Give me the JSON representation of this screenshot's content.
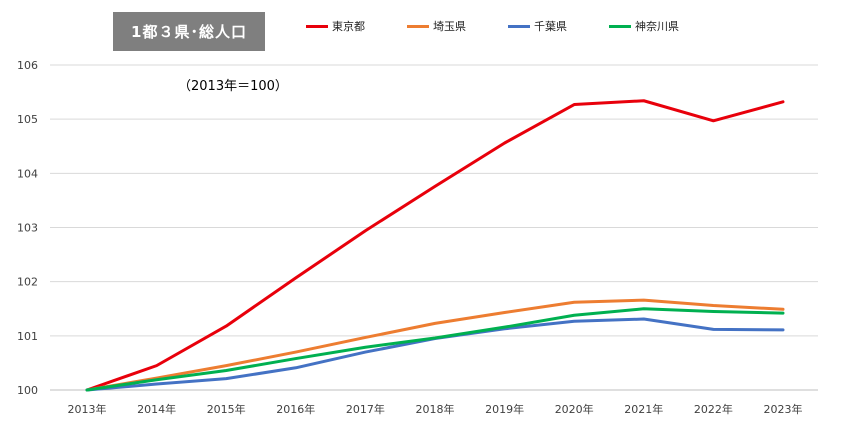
{
  "chart_data": {
    "type": "line",
    "title": "1都３県･総人口",
    "subtitle": "（2013年＝100）",
    "categories": [
      "2013年",
      "2014年",
      "2015年",
      "2016年",
      "2017年",
      "2018年",
      "2019年",
      "2020年",
      "2021年",
      "2022年",
      "2023年"
    ],
    "yticks": [
      "100",
      "101",
      "102",
      "103",
      "104",
      "105",
      "106"
    ],
    "ylim": [
      100,
      106
    ],
    "grid": true,
    "legend_position": "top",
    "series": [
      {
        "name": "東京都",
        "color": "#e8000b",
        "values": [
          100,
          100.45,
          101.18,
          102.07,
          102.94,
          103.76,
          104.56,
          105.27,
          105.34,
          104.97,
          105.32
        ]
      },
      {
        "name": "埼玉県",
        "color": "#ed7d31",
        "values": [
          100,
          100.22,
          100.45,
          100.7,
          100.97,
          101.23,
          101.43,
          101.62,
          101.66,
          101.56,
          101.49
        ]
      },
      {
        "name": "千葉県",
        "color": "#4472c4",
        "values": [
          100,
          100.11,
          100.21,
          100.41,
          100.7,
          100.95,
          101.13,
          101.27,
          101.31,
          101.12,
          101.11
        ]
      },
      {
        "name": "神奈川県",
        "color": "#00b050",
        "values": [
          100,
          100.19,
          100.36,
          100.58,
          100.79,
          100.96,
          101.16,
          101.38,
          101.5,
          101.45,
          101.42
        ]
      }
    ]
  }
}
